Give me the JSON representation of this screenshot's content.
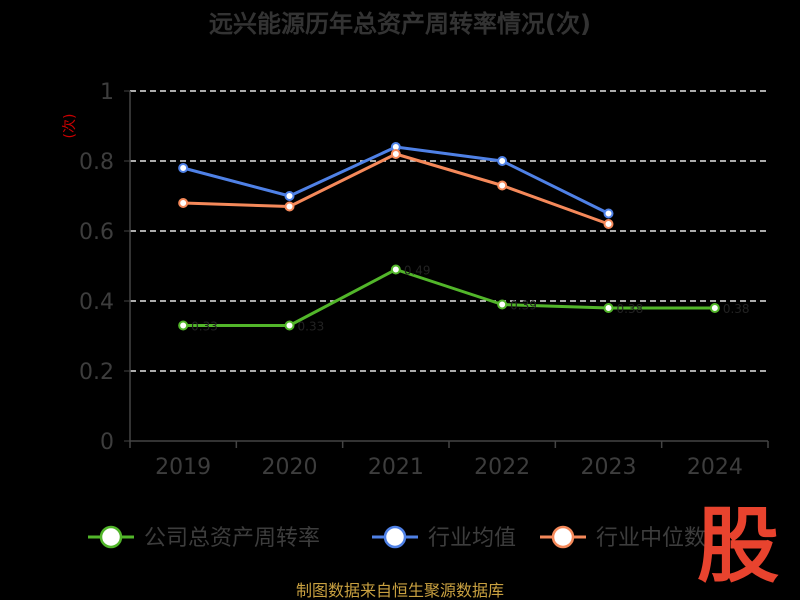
{
  "chart_data": {
    "type": "line",
    "title": "远兴能源历年总资产周转率情况(次)",
    "ylabel": "(次)",
    "categories": [
      "2019",
      "2020",
      "2021",
      "2022",
      "2023",
      "2024"
    ],
    "ylim": [
      0,
      1
    ],
    "yticks": [
      0,
      0.2,
      0.4,
      0.6,
      0.8,
      1
    ],
    "ytick_labels": [
      "0",
      "0.2",
      "0.4",
      "0.6",
      "0.8",
      "1"
    ],
    "grid": true,
    "legend_position": "bottom",
    "series": [
      {
        "name": "公司总资产周转率",
        "color": "#52b62a",
        "values": [
          0.33,
          0.33,
          0.49,
          0.39,
          0.38,
          0.38
        ]
      },
      {
        "name": "行业均值",
        "color": "#4f81e6",
        "values": [
          0.78,
          0.7,
          0.84,
          0.8,
          0.65,
          null
        ]
      },
      {
        "name": "行业中位数",
        "color": "#f5895a",
        "values": [
          0.68,
          0.67,
          0.82,
          0.73,
          0.62,
          null
        ]
      }
    ],
    "source": "制图数据来自恒生聚源数据库",
    "watermark": "股"
  }
}
